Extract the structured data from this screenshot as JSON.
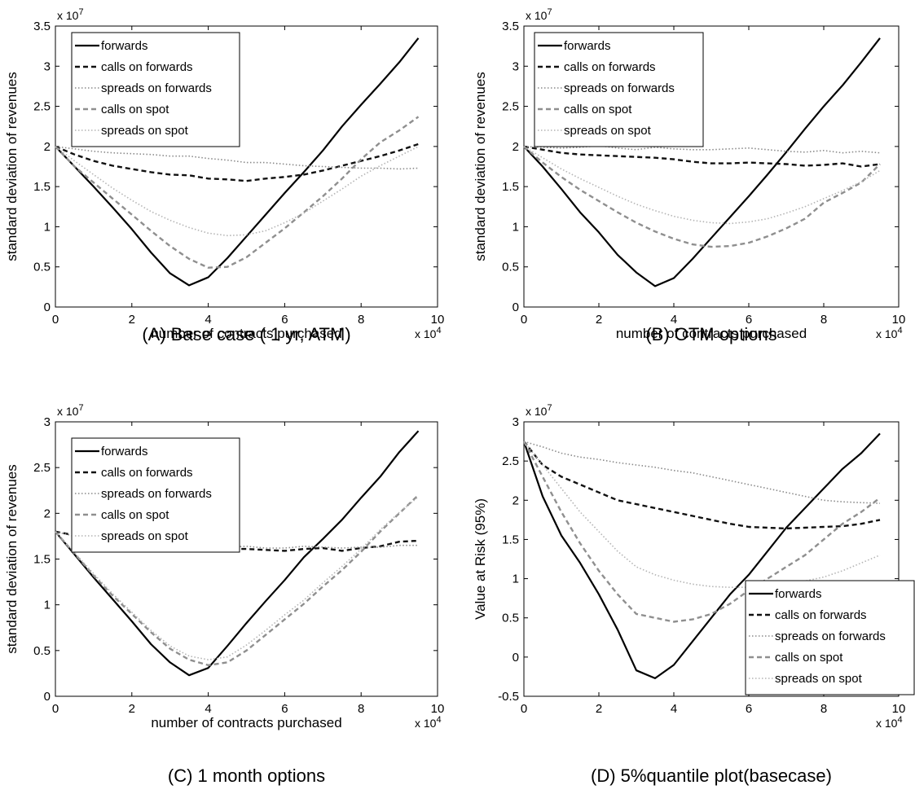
{
  "style": {
    "series_colors": {
      "forwards": "#000000",
      "calls on forwards": "#111111",
      "spreads on forwards": "#8a8a8a",
      "calls on spot": "#8f8f8f",
      "spreads on spot": "#b4b4b4"
    },
    "series_dash": {
      "forwards": "solid",
      "calls on forwards": "dashed",
      "spreads on forwards": "dotted",
      "calls on spot": "dashed",
      "spreads on spot": "dotted"
    }
  },
  "chart_data": [
    {
      "type": "line",
      "caption": "(A) Base case ( 1 yr, ATM)",
      "xlabel": "number of contracts purchased",
      "ylabel": "standard deviation of revenues",
      "x_exponent": "x 10",
      "x_exponent_power": "4",
      "y_exponent": "x 10",
      "y_exponent_power": "7",
      "xlim": [
        0,
        10
      ],
      "ylim": [
        0,
        3.5
      ],
      "xticks": [
        0,
        2,
        4,
        6,
        8,
        10
      ],
      "xtick_labels": [
        "0",
        "2",
        "4",
        "6",
        "8",
        "10"
      ],
      "yticks": [
        0,
        0.5,
        1,
        1.5,
        2,
        2.5,
        3,
        3.5
      ],
      "ytick_labels": [
        "0",
        "0.5",
        "1",
        "1.5",
        "2",
        "2.5",
        "3",
        "3.5"
      ],
      "legend_position": "top-left",
      "x": [
        0,
        0.5,
        1,
        1.5,
        2,
        2.5,
        3,
        3.5,
        4,
        4.5,
        5,
        5.5,
        6,
        6.5,
        7,
        7.5,
        8,
        8.5,
        9,
        9.5
      ],
      "series": [
        {
          "name": "forwards",
          "values": [
            2.0,
            1.75,
            1.5,
            1.24,
            0.97,
            0.68,
            0.42,
            0.27,
            0.37,
            0.61,
            0.88,
            1.15,
            1.42,
            1.68,
            1.95,
            2.25,
            2.52,
            2.78,
            3.05,
            3.35
          ]
        },
        {
          "name": "calls on forwards",
          "values": [
            2.0,
            1.9,
            1.82,
            1.76,
            1.72,
            1.68,
            1.65,
            1.64,
            1.6,
            1.59,
            1.57,
            1.6,
            1.62,
            1.65,
            1.7,
            1.76,
            1.82,
            1.88,
            1.95,
            2.03
          ]
        },
        {
          "name": "spreads on forwards",
          "values": [
            2.0,
            1.97,
            1.94,
            1.92,
            1.91,
            1.9,
            1.88,
            1.88,
            1.85,
            1.83,
            1.8,
            1.8,
            1.78,
            1.76,
            1.75,
            1.74,
            1.73,
            1.73,
            1.72,
            1.73
          ]
        },
        {
          "name": "calls on spot",
          "values": [
            2.0,
            1.75,
            1.55,
            1.35,
            1.15,
            0.95,
            0.76,
            0.6,
            0.49,
            0.5,
            0.62,
            0.8,
            0.98,
            1.18,
            1.38,
            1.6,
            1.84,
            2.05,
            2.2,
            2.37
          ]
        },
        {
          "name": "spreads on spot",
          "values": [
            2.0,
            1.82,
            1.65,
            1.48,
            1.33,
            1.19,
            1.08,
            0.99,
            0.92,
            0.89,
            0.9,
            0.95,
            1.05,
            1.17,
            1.32,
            1.47,
            1.63,
            1.76,
            1.88,
            2.0
          ]
        }
      ]
    },
    {
      "type": "line",
      "caption": "(B) OTM options",
      "xlabel": "number of contracts purchased",
      "ylabel": "standard deviation of revenues",
      "x_exponent": "x 10",
      "x_exponent_power": "4",
      "y_exponent": "x 10",
      "y_exponent_power": "7",
      "xlim": [
        0,
        10
      ],
      "ylim": [
        0,
        3.5
      ],
      "xticks": [
        0,
        2,
        4,
        6,
        8,
        10
      ],
      "xtick_labels": [
        "0",
        "2",
        "4",
        "6",
        "8",
        "10"
      ],
      "yticks": [
        0,
        0.5,
        1,
        1.5,
        2,
        2.5,
        3,
        3.5
      ],
      "ytick_labels": [
        "0",
        "0.5",
        "1",
        "1.5",
        "2",
        "2.5",
        "3",
        "3.5"
      ],
      "legend_position": "top-left",
      "x": [
        0,
        0.5,
        1,
        1.5,
        2,
        2.5,
        3,
        3.5,
        4,
        4.5,
        5,
        5.5,
        6,
        6.5,
        7,
        7.5,
        8,
        8.5,
        9,
        9.5
      ],
      "series": [
        {
          "name": "forwards",
          "values": [
            2.0,
            1.75,
            1.47,
            1.18,
            0.93,
            0.65,
            0.43,
            0.26,
            0.36,
            0.6,
            0.86,
            1.12,
            1.38,
            1.65,
            1.93,
            2.22,
            2.5,
            2.76,
            3.05,
            3.35
          ]
        },
        {
          "name": "calls on forwards",
          "values": [
            2.0,
            1.96,
            1.92,
            1.9,
            1.89,
            1.88,
            1.87,
            1.86,
            1.84,
            1.81,
            1.79,
            1.79,
            1.8,
            1.79,
            1.78,
            1.76,
            1.77,
            1.79,
            1.75,
            1.78
          ]
        },
        {
          "name": "spreads on forwards",
          "values": [
            2.0,
            1.99,
            1.98,
            1.99,
            2.01,
            1.98,
            1.96,
            1.99,
            1.97,
            1.96,
            1.96,
            1.97,
            1.98,
            1.96,
            1.94,
            1.93,
            1.95,
            1.92,
            1.94,
            1.92
          ]
        },
        {
          "name": "calls on spot",
          "values": [
            2.0,
            1.8,
            1.62,
            1.46,
            1.32,
            1.18,
            1.05,
            0.94,
            0.85,
            0.78,
            0.75,
            0.76,
            0.8,
            0.88,
            0.98,
            1.1,
            1.3,
            1.42,
            1.55,
            1.78
          ]
        },
        {
          "name": "spreads on spot",
          "values": [
            2.0,
            1.86,
            1.72,
            1.6,
            1.49,
            1.38,
            1.28,
            1.2,
            1.13,
            1.08,
            1.05,
            1.04,
            1.06,
            1.1,
            1.17,
            1.25,
            1.35,
            1.45,
            1.56,
            1.7
          ]
        }
      ]
    },
    {
      "type": "line",
      "caption": "(C) 1 month options",
      "xlabel": "number of contracts purchased",
      "ylabel": "standard deviation of revenues",
      "x_exponent": "x 10",
      "x_exponent_power": "4",
      "y_exponent": "x 10",
      "y_exponent_power": "7",
      "xlim": [
        0,
        10
      ],
      "ylim": [
        0,
        3
      ],
      "xticks": [
        0,
        2,
        4,
        6,
        8,
        10
      ],
      "xtick_labels": [
        "0",
        "2",
        "4",
        "6",
        "8",
        "10"
      ],
      "yticks": [
        0,
        0.5,
        1,
        1.5,
        2,
        2.5,
        3
      ],
      "ytick_labels": [
        "0",
        "0.5",
        "1",
        "1.5",
        "2",
        "2.5",
        "3"
      ],
      "legend_position": "top-left",
      "x": [
        0,
        0.5,
        1,
        1.5,
        2,
        2.5,
        3,
        3.5,
        4,
        4.5,
        5,
        5.5,
        6,
        6.5,
        7,
        7.5,
        8,
        8.5,
        9,
        9.5
      ],
      "series": [
        {
          "name": "forwards",
          "values": [
            1.8,
            1.55,
            1.3,
            1.06,
            0.82,
            0.57,
            0.37,
            0.23,
            0.31,
            0.55,
            0.8,
            1.04,
            1.27,
            1.52,
            1.72,
            1.93,
            2.17,
            2.4,
            2.67,
            2.9
          ]
        },
        {
          "name": "calls on forwards",
          "values": [
            1.8,
            1.76,
            1.72,
            1.69,
            1.67,
            1.63,
            1.61,
            1.6,
            1.6,
            1.61,
            1.61,
            1.6,
            1.59,
            1.61,
            1.62,
            1.59,
            1.62,
            1.64,
            1.69,
            1.7
          ]
        },
        {
          "name": "spreads on forwards",
          "values": [
            1.8,
            1.75,
            1.72,
            1.7,
            1.68,
            1.66,
            1.65,
            1.64,
            1.63,
            1.63,
            1.64,
            1.62,
            1.62,
            1.64,
            1.63,
            1.62,
            1.63,
            1.63,
            1.65,
            1.65
          ]
        },
        {
          "name": "calls on spot",
          "values": [
            1.8,
            1.56,
            1.32,
            1.1,
            0.9,
            0.7,
            0.52,
            0.4,
            0.34,
            0.37,
            0.5,
            0.67,
            0.84,
            1.01,
            1.2,
            1.38,
            1.58,
            1.8,
            2.0,
            2.2
          ]
        },
        {
          "name": "spreads on spot",
          "values": [
            1.8,
            1.57,
            1.34,
            1.12,
            0.92,
            0.72,
            0.55,
            0.44,
            0.4,
            0.43,
            0.56,
            0.72,
            0.89,
            1.05,
            1.24,
            1.42,
            1.61,
            1.82,
            2.01,
            2.18
          ]
        }
      ]
    },
    {
      "type": "line",
      "caption": "(D) 5%quantile plot(basecase)",
      "xlabel": "",
      "ylabel": "Value at Risk (95%)",
      "x_exponent": "x 10",
      "x_exponent_power": "4",
      "y_exponent": "x 10",
      "y_exponent_power": "7",
      "xlim": [
        0,
        10
      ],
      "ylim": [
        -0.5,
        3
      ],
      "xticks": [
        0,
        2,
        4,
        6,
        8,
        10
      ],
      "xtick_labels": [
        "0",
        "2",
        "4",
        "6",
        "8",
        "10"
      ],
      "yticks": [
        -0.5,
        0,
        0.5,
        1,
        1.5,
        2,
        2.5,
        3
      ],
      "ytick_labels": [
        "-0.5",
        "0",
        "0.5",
        "1",
        "1.5",
        "2",
        "2.5",
        "3"
      ],
      "legend_position": "bottom-right",
      "x": [
        0,
        0.5,
        1,
        1.5,
        2,
        2.5,
        3,
        3.5,
        4,
        4.5,
        5,
        5.5,
        6,
        6.5,
        7,
        7.5,
        8,
        8.5,
        9,
        9.5
      ],
      "series": [
        {
          "name": "forwards",
          "values": [
            2.75,
            2.05,
            1.55,
            1.2,
            0.8,
            0.35,
            -0.17,
            -0.27,
            -0.1,
            0.2,
            0.5,
            0.8,
            1.05,
            1.35,
            1.65,
            1.9,
            2.15,
            2.4,
            2.6,
            2.85
          ]
        },
        {
          "name": "calls on forwards",
          "values": [
            2.75,
            2.45,
            2.3,
            2.2,
            2.1,
            2.0,
            1.95,
            1.9,
            1.85,
            1.8,
            1.75,
            1.7,
            1.66,
            1.65,
            1.64,
            1.65,
            1.66,
            1.67,
            1.7,
            1.75
          ]
        },
        {
          "name": "spreads on forwards",
          "values": [
            2.75,
            2.68,
            2.6,
            2.55,
            2.52,
            2.48,
            2.45,
            2.42,
            2.38,
            2.35,
            2.3,
            2.25,
            2.2,
            2.15,
            2.1,
            2.05,
            2.0,
            1.98,
            1.97,
            1.96
          ]
        },
        {
          "name": "calls on spot",
          "values": [
            2.75,
            2.3,
            1.85,
            1.45,
            1.1,
            0.8,
            0.55,
            0.5,
            0.45,
            0.48,
            0.55,
            0.68,
            0.85,
            1.0,
            1.15,
            1.3,
            1.5,
            1.7,
            1.85,
            2.03
          ]
        },
        {
          "name": "spreads on spot",
          "values": [
            2.75,
            2.45,
            2.15,
            1.85,
            1.6,
            1.35,
            1.15,
            1.05,
            0.98,
            0.93,
            0.9,
            0.89,
            0.89,
            0.9,
            0.93,
            0.97,
            1.02,
            1.1,
            1.2,
            1.3
          ]
        }
      ]
    }
  ]
}
